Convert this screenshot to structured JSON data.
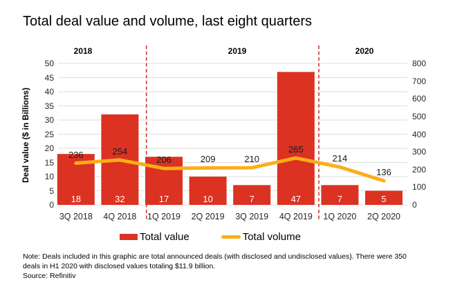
{
  "title": "Total deal value and volume, last eight quarters",
  "chart_data": {
    "type": "bar",
    "subtype": "bar-with-line-overlay",
    "categories": [
      "3Q 2018",
      "4Q 2018",
      "1Q 2019",
      "2Q 2019",
      "3Q 2019",
      "4Q 2019",
      "1Q 2020",
      "2Q 2020"
    ],
    "series": [
      {
        "name": "Total value",
        "type": "bar",
        "axis": "left",
        "color": "#DC3222",
        "values": [
          18,
          32,
          17,
          10,
          7,
          47,
          7,
          5
        ]
      },
      {
        "name": "Total volume",
        "type": "line",
        "axis": "right",
        "color": "#FBAE17",
        "values": [
          236,
          254,
          206,
          209,
          210,
          265,
          214,
          136
        ]
      }
    ],
    "year_groups": [
      {
        "label": "2018"
      },
      {
        "label": "2019"
      },
      {
        "label": "2020"
      }
    ],
    "left_axis": {
      "label": "Deal value ($ in Billions)",
      "min": 0,
      "max": 50,
      "step": 5,
      "ticks": [
        50,
        45,
        40,
        35,
        30,
        25,
        20,
        15,
        10,
        5,
        0
      ]
    },
    "right_axis": {
      "label": "",
      "min": 0,
      "max": 800,
      "step": 100,
      "ticks": [
        800,
        700,
        600,
        500,
        400,
        300,
        200,
        100,
        0
      ]
    },
    "grid": "horizontal",
    "legend_position": "bottom",
    "gridline_color": "#DEDEDE",
    "separator_color": "#CC3A28",
    "background_color": "#FFFFFF"
  },
  "note": {
    "lines": [
      "Note: Deals included in this graphic are total announced deals (with disclosed and undisclosed values). There were 350",
      "deals in H1 2020 with disclosed values totaling $11.9 billion."
    ],
    "source": "Source: Refinitiv"
  }
}
